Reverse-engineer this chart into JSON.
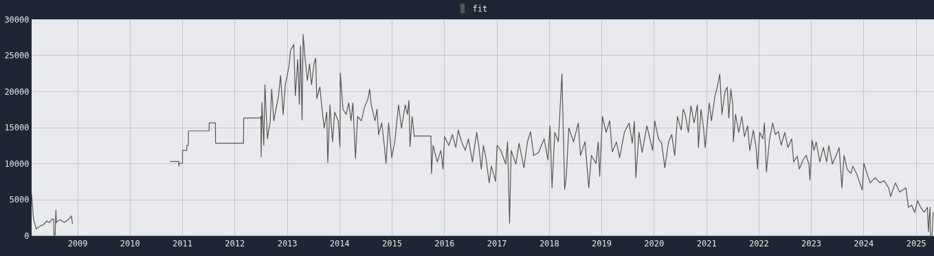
{
  "chart_data": {
    "type": "line",
    "legend": "top",
    "grid": true,
    "line_style": "solid",
    "xlim": [
      "2008-02-17",
      "2025-05-07"
    ],
    "ylim": [
      0,
      30000
    ],
    "xticks": [
      {
        "value": "2009",
        "label": "2009"
      },
      {
        "value": "2010",
        "label": "2010"
      },
      {
        "value": "2011",
        "label": "2011"
      },
      {
        "value": "2012",
        "label": "2012"
      },
      {
        "value": "2013",
        "label": "2013"
      },
      {
        "value": "2014",
        "label": "2014"
      },
      {
        "value": "2015",
        "label": "2015"
      },
      {
        "value": "2016",
        "label": "2016"
      },
      {
        "value": "2017",
        "label": "2017"
      },
      {
        "value": "2018",
        "label": "2018"
      },
      {
        "value": "2019",
        "label": "2019"
      },
      {
        "value": "2020",
        "label": "2020"
      },
      {
        "value": "2021",
        "label": "2021"
      },
      {
        "value": "2022",
        "label": "2022"
      },
      {
        "value": "2023",
        "label": "2023"
      },
      {
        "value": "2024",
        "label": "2024"
      },
      {
        "value": "2025",
        "label": "2025"
      }
    ],
    "yticks": [
      0,
      5000,
      10000,
      15000,
      20000,
      25000,
      30000
    ],
    "x": [
      "2008-02-17",
      "2008-03-01",
      "2008-03-20",
      "2008-04-15",
      "2008-05-10",
      "2008-06-01",
      "2008-06-20",
      "2008-07-10",
      "2008-07-20",
      "2008-07-22",
      "2008-07-30",
      "2008-08-04",
      "2008-08-08",
      "2008-09-01",
      "2008-10-01",
      "2008-10-25",
      "2008-11-20",
      "2008-11-28",
      "2009-06-01",
      "2010-10-10",
      "2010-12-08",
      "2010-12-10",
      "2010-12-12",
      "2011-01-03",
      "2011-01-04",
      "2011-02-02",
      "2011-02-03",
      "2011-02-13",
      "2011-02-14",
      "2011-07-08",
      "2011-07-09",
      "2011-08-21",
      "2011-08-22",
      "2012-03-04",
      "2012-03-05",
      "2012-06-28",
      "2012-07-03",
      "2012-07-05",
      "2012-07-10",
      "2012-07-23",
      "2012-07-31",
      "2012-08-17",
      "2012-09-06",
      "2012-09-16",
      "2012-10-01",
      "2012-11-03",
      "2012-11-17",
      "2012-12-05",
      "2012-12-20",
      "2013-01-15",
      "2013-01-26",
      "2013-02-17",
      "2013-02-28",
      "2013-03-17",
      "2013-03-28",
      "2013-04-05",
      "2013-04-16",
      "2013-04-23",
      "2013-05-05",
      "2013-05-23",
      "2013-06-07",
      "2013-06-21",
      "2013-07-09",
      "2013-07-20",
      "2013-07-27",
      "2013-08-18",
      "2013-09-02",
      "2013-09-17",
      "2013-10-05",
      "2013-10-12",
      "2013-10-27",
      "2013-11-14",
      "2013-11-29",
      "2013-12-24",
      "2014-01-05",
      "2014-01-08",
      "2014-01-26",
      "2014-02-17",
      "2014-03-07",
      "2014-03-23",
      "2014-04-05",
      "2014-04-23",
      "2014-05-08",
      "2014-06-03",
      "2014-06-25",
      "2014-07-20",
      "2014-07-31",
      "2014-08-11",
      "2014-09-06",
      "2014-09-20",
      "2014-10-01",
      "2014-10-23",
      "2014-11-10",
      "2014-11-22",
      "2014-12-10",
      "2015-01-01",
      "2015-01-22",
      "2015-02-17",
      "2015-03-10",
      "2015-04-05",
      "2015-04-20",
      "2015-05-01",
      "2015-05-08",
      "2015-05-23",
      "2015-06-07",
      "2015-06-10",
      "2015-10-01",
      "2015-10-05",
      "2015-10-16",
      "2015-11-14",
      "2015-12-09",
      "2015-12-24",
      "2016-01-04",
      "2016-02-03",
      "2016-02-28",
      "2016-03-22",
      "2016-04-09",
      "2016-05-01",
      "2016-05-27",
      "2016-06-18",
      "2016-07-16",
      "2016-08-15",
      "2016-08-29",
      "2016-09-16",
      "2016-10-01",
      "2016-10-20",
      "2016-11-10",
      "2016-11-25",
      "2016-12-10",
      "2016-12-24",
      "2017-01-04",
      "2017-01-30",
      "2017-03-05",
      "2017-03-18",
      "2017-04-01",
      "2017-04-12",
      "2017-05-15",
      "2017-06-06",
      "2017-07-10",
      "2017-08-04",
      "2017-08-25",
      "2017-09-16",
      "2017-10-20",
      "2017-11-28",
      "2017-12-24",
      "2018-01-08",
      "2018-01-22",
      "2018-02-10",
      "2018-03-07",
      "2018-04-01",
      "2018-04-20",
      "2018-05-01",
      "2018-05-19",
      "2018-06-21",
      "2018-07-24",
      "2018-08-08",
      "2018-09-09",
      "2018-10-05",
      "2018-10-23",
      "2018-11-24",
      "2018-12-10",
      "2018-12-20",
      "2019-01-08",
      "2019-02-03",
      "2019-02-28",
      "2019-03-18",
      "2019-04-16",
      "2019-05-08",
      "2019-06-10",
      "2019-07-13",
      "2019-08-04",
      "2019-08-19",
      "2019-08-29",
      "2019-09-20",
      "2019-10-12",
      "2019-11-14",
      "2019-12-10",
      "2019-12-24",
      "2020-01-08",
      "2020-02-03",
      "2020-02-25",
      "2020-03-18",
      "2020-04-13",
      "2020-05-05",
      "2020-05-26",
      "2020-06-14",
      "2020-07-10",
      "2020-07-24",
      "2020-08-07",
      "2020-08-29",
      "2020-09-16",
      "2020-10-08",
      "2020-10-31",
      "2020-11-07",
      "2020-11-25",
      "2020-12-13",
      "2020-12-24",
      "2021-01-22",
      "2021-02-06",
      "2021-03-03",
      "2021-03-22",
      "2021-04-05",
      "2021-04-20",
      "2021-05-12",
      "2021-05-27",
      "2021-06-07",
      "2021-06-21",
      "2021-07-05",
      "2021-07-09",
      "2021-07-24",
      "2021-08-15",
      "2021-09-06",
      "2021-09-24",
      "2021-10-16",
      "2021-10-31",
      "2021-11-25",
      "2021-12-14",
      "2021-12-24",
      "2022-01-08",
      "2022-01-30",
      "2022-02-10",
      "2022-02-24",
      "2022-03-18",
      "2022-04-09",
      "2022-04-27",
      "2022-05-19",
      "2022-06-07",
      "2022-07-02",
      "2022-07-24",
      "2022-08-19",
      "2022-09-02",
      "2022-09-27",
      "2022-10-12",
      "2022-11-07",
      "2022-11-28",
      "2022-12-17",
      "2022-12-24",
      "2023-01-08",
      "2023-01-22",
      "2023-02-06",
      "2023-03-03",
      "2023-03-28",
      "2023-04-20",
      "2023-05-05",
      "2023-05-30",
      "2023-06-25",
      "2023-07-16",
      "2023-08-04",
      "2023-08-19",
      "2023-09-09",
      "2023-10-05",
      "2023-10-20",
      "2023-11-14",
      "2023-12-24",
      "2024-01-04",
      "2024-01-26",
      "2024-02-17",
      "2024-03-22",
      "2024-04-24",
      "2024-05-23",
      "2024-06-25",
      "2024-07-09",
      "2024-08-11",
      "2024-09-09",
      "2024-10-23",
      "2024-11-10",
      "2024-12-02",
      "2024-12-24",
      "2025-01-12",
      "2025-02-03",
      "2025-02-28",
      "2025-03-22",
      "2025-03-29",
      "2025-04-09",
      "2025-04-12",
      "2025-04-23",
      "2025-05-01"
    ],
    "series": [
      {
        "name": "fit",
        "color": "#555555",
        "values": [
          5700,
          2300,
          900,
          1300,
          1500,
          2000,
          1800,
          2300,
          2200,
          0,
          0,
          3500,
          1800,
          2200,
          1800,
          2100,
          2700,
          1600,
          null,
          10250,
          10250,
          9600,
          10000,
          10000,
          11800,
          11800,
          12500,
          12500,
          14500,
          14500,
          15600,
          15600,
          12800,
          12800,
          16300,
          16300,
          16500,
          10900,
          18500,
          12500,
          20900,
          13400,
          15900,
          20300,
          15900,
          19400,
          22200,
          16800,
          20900,
          23500,
          25700,
          26500,
          19400,
          24400,
          18200,
          26300,
          16000,
          27900,
          25000,
          21500,
          23800,
          20900,
          23900,
          24600,
          19000,
          20600,
          17500,
          14900,
          17100,
          10100,
          18100,
          13000,
          17100,
          15900,
          12300,
          22500,
          17500,
          16800,
          18400,
          15900,
          18400,
          10700,
          16500,
          15900,
          17800,
          19000,
          20300,
          18100,
          15900,
          17500,
          14000,
          15600,
          12500,
          10000,
          15600,
          10800,
          13000,
          18100,
          14900,
          18100,
          16800,
          18700,
          12300,
          16500,
          13700,
          13800,
          13800,
          8600,
          12500,
          10200,
          11800,
          9200,
          13700,
          12500,
          14000,
          12200,
          14600,
          13000,
          11800,
          13400,
          10200,
          14300,
          12500,
          9200,
          12500,
          10500,
          7300,
          9600,
          8600,
          7500,
          12500,
          11800,
          9900,
          13000,
          1700,
          11800,
          9900,
          12800,
          9400,
          13000,
          14400,
          11100,
          11500,
          13400,
          10500,
          15200,
          6600,
          14300,
          13000,
          22400,
          6400,
          8100,
          14900,
          13000,
          15600,
          11100,
          13000,
          6600,
          11100,
          10000,
          13000,
          8200,
          16500,
          14300,
          15900,
          11600,
          13000,
          10800,
          14300,
          15600,
          12800,
          15800,
          8000,
          14300,
          11500,
          15200,
          13000,
          11800,
          15900,
          13400,
          12800,
          9400,
          13000,
          14000,
          11100,
          16500,
          14600,
          17500,
          16800,
          14300,
          18000,
          15600,
          18100,
          12200,
          17500,
          14900,
          12200,
          18400,
          15900,
          19400,
          20900,
          22400,
          16800,
          20000,
          20600,
          16300,
          20300,
          18100,
          13000,
          16800,
          14300,
          16500,
          13700,
          15200,
          11800,
          14600,
          12200,
          9200,
          14300,
          13400,
          15600,
          8800,
          13400,
          15600,
          14000,
          14400,
          12500,
          14300,
          12200,
          13400,
          10200,
          11000,
          9200,
          10500,
          11100,
          9900,
          7700,
          13200,
          11800,
          13000,
          10200,
          12200,
          10200,
          12500,
          9900,
          11100,
          12200,
          6600,
          11100,
          9200,
          8600,
          9600,
          8600,
          6300,
          10000,
          8600,
          7300,
          8000,
          7300,
          7600,
          6600,
          5400,
          7300,
          6000,
          6600,
          3900,
          4200,
          3200,
          4800,
          3900,
          3200,
          3900,
          500,
          3900,
          0,
          0,
          3200
        ]
      }
    ]
  }
}
